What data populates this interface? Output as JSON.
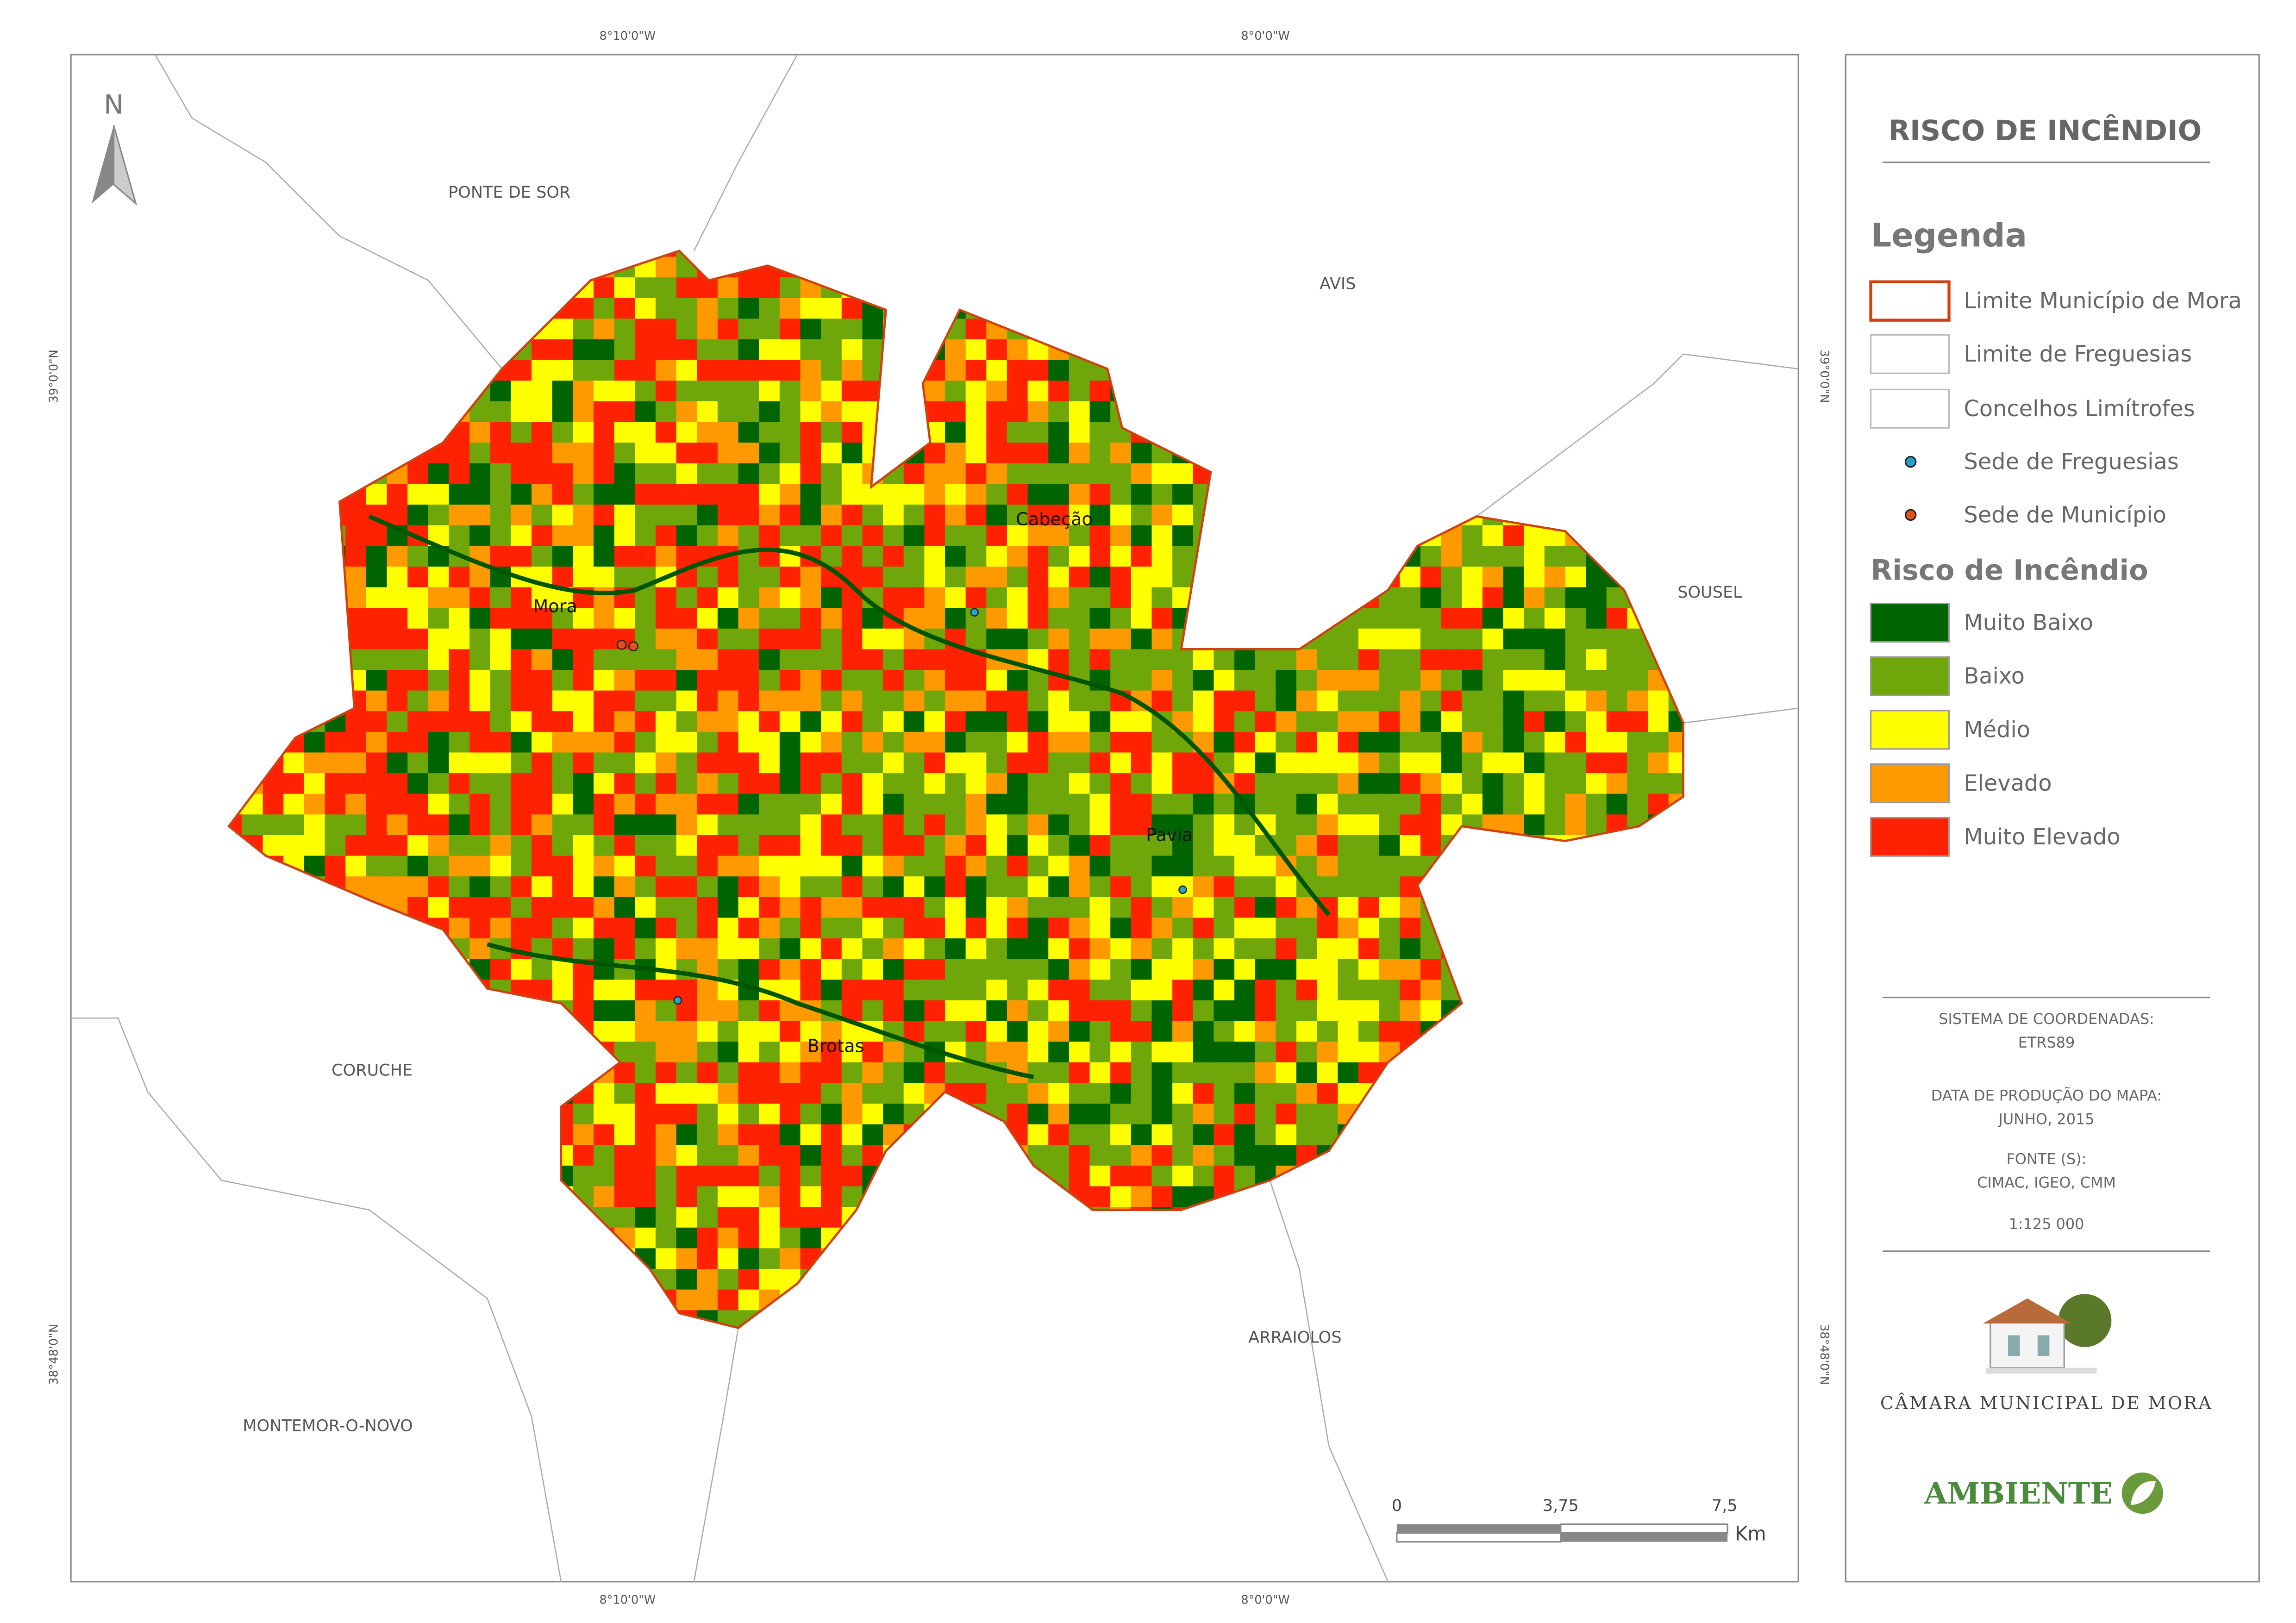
{
  "map": {
    "north_arrow": "N",
    "coordinates": {
      "top": [
        "8°10'0\"W",
        "8°0'0\"W"
      ],
      "bottom": [
        "8°10'0\"W",
        "8°0'0\"W"
      ],
      "left": [
        "39°0'0\"N",
        "38°48'0\"N"
      ],
      "right": [
        "39°0'0\"N",
        "38°48'0\"N"
      ]
    },
    "neighbors": [
      "PONTE DE SOR",
      "AVIS",
      "SOUSEL",
      "CORUCHE",
      "ARRAIOLOS",
      "MONTEMOR-O-NOVO"
    ],
    "places": [
      "Mora",
      "Cabeção",
      "Pavia",
      "Brotas"
    ],
    "scale_bar": {
      "labels": [
        "0",
        "3,75",
        "7,5"
      ],
      "unit": "Km"
    }
  },
  "panel": {
    "title": "RISCO DE INCÊNDIO",
    "legend_title": "Legenda",
    "legend": [
      "Limite Município de Mora",
      "Limite de Freguesias",
      "Concelhos Limítrofes",
      "Sede de Freguesias",
      "Sede de Município"
    ],
    "risk_title": "Risco de Incêndio",
    "risk": [
      {
        "label": "Muito Baixo",
        "color": "#006400"
      },
      {
        "label": "Baixo",
        "color": "#6fa60a"
      },
      {
        "label": "Médio",
        "color": "#ffff00"
      },
      {
        "label": "Elevado",
        "color": "#ff9900"
      },
      {
        "label": "Muito Elevado",
        "color": "#ff2200"
      }
    ],
    "info": [
      "SISTEMA DE COORDENADAS:",
      "ETRS89",
      "DATA DE PRODUÇÃO DO MAPA:",
      "JUNHO, 2015",
      "FONTE (S):",
      "CIMAC, IGEO, CMM",
      "1:125 000"
    ],
    "logo_text": "CÂMARA MUNICIPAL DE MORA",
    "brand": "AMBIENTE"
  }
}
